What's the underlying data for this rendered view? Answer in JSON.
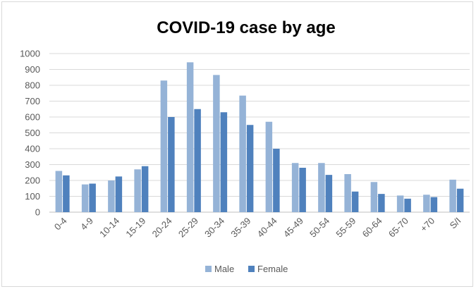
{
  "chart_data": {
    "type": "bar",
    "title": "COVID-19 case by age",
    "xlabel": "",
    "ylabel": "",
    "ylim": [
      0,
      1000
    ],
    "y_ticks": [
      0,
      100,
      200,
      300,
      400,
      500,
      600,
      700,
      800,
      900,
      1000
    ],
    "grid": true,
    "legend_position": "bottom",
    "categories": [
      "0-4",
      "4-9",
      "10-14",
      "15-19",
      "20-24",
      "25-29",
      "30-34",
      "35-39",
      "40-44",
      "45-49",
      "50-54",
      "55-59",
      "60-64",
      "65-70",
      "+70",
      "S/I"
    ],
    "series": [
      {
        "name": "Male",
        "color": "#95b3d7",
        "values": [
          260,
          175,
          200,
          270,
          830,
          945,
          865,
          735,
          570,
          310,
          310,
          240,
          190,
          105,
          110,
          205
        ]
      },
      {
        "name": "Female",
        "color": "#4f81bd",
        "values": [
          232,
          180,
          225,
          290,
          600,
          650,
          630,
          550,
          400,
          280,
          235,
          130,
          115,
          85,
          95,
          148
        ]
      }
    ]
  }
}
